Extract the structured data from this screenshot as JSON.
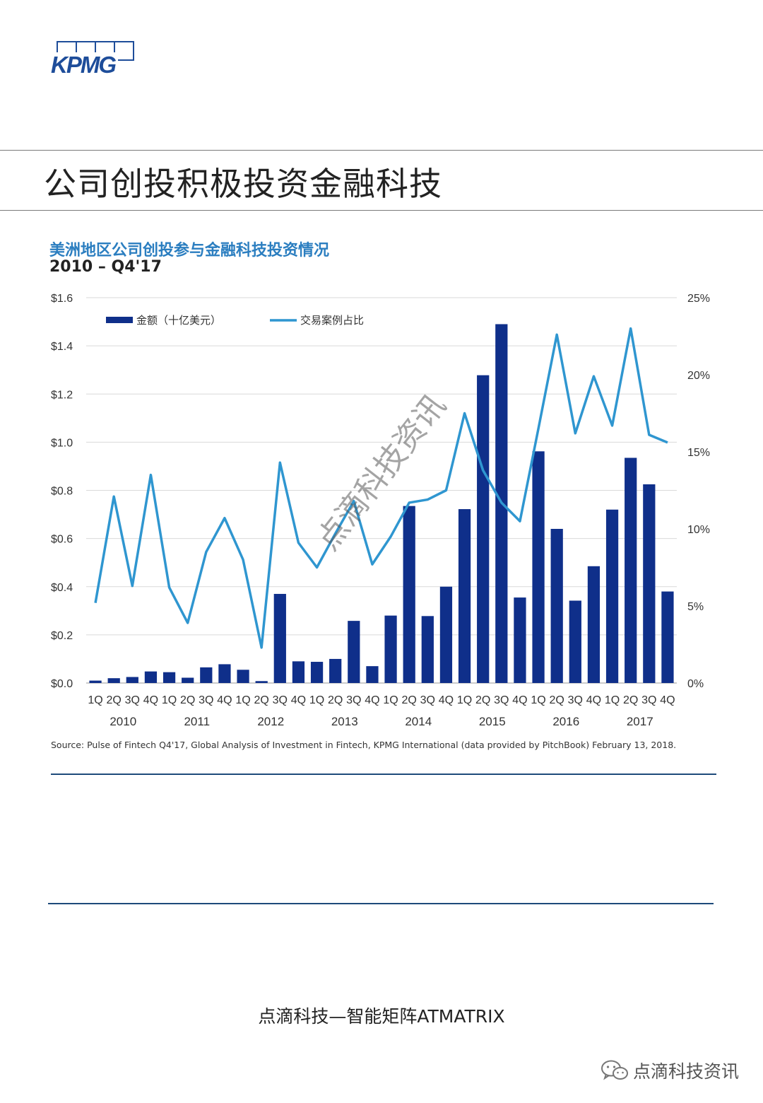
{
  "logo": {
    "text": "KPMG"
  },
  "page_title": "公司创投积极投资金融科技",
  "chart_data": {
    "type": "bar+line",
    "title": "美洲地区公司创投参与金融科技投资情况",
    "subtitle": "2010 – Q4'17",
    "quarters": [
      "1Q",
      "2Q",
      "3Q",
      "4Q",
      "1Q",
      "2Q",
      "3Q",
      "4Q",
      "1Q",
      "2Q",
      "3Q",
      "4Q",
      "1Q",
      "2Q",
      "3Q",
      "4Q",
      "1Q",
      "2Q",
      "3Q",
      "4Q",
      "1Q",
      "2Q",
      "3Q",
      "4Q",
      "1Q",
      "2Q",
      "3Q",
      "4Q",
      "1Q",
      "2Q",
      "3Q",
      "4Q"
    ],
    "years": [
      "2010",
      "2011",
      "2012",
      "2013",
      "2014",
      "2015",
      "2016",
      "2017"
    ],
    "series": [
      {
        "name": "金额（十亿美元）",
        "type": "bar",
        "axis": "left",
        "color": "#0f2f8a",
        "values": [
          0.01,
          0.02,
          0.025,
          0.048,
          0.045,
          0.022,
          0.065,
          0.078,
          0.055,
          0.008,
          0.37,
          0.09,
          0.088,
          0.1,
          0.258,
          0.07,
          0.28,
          0.735,
          0.278,
          0.4,
          0.722,
          1.278,
          1.49,
          0.355,
          0.962,
          0.64,
          0.342,
          0.485,
          0.72,
          0.935,
          0.825,
          0.38
        ]
      },
      {
        "name": "交易案例占比",
        "type": "line",
        "axis": "right",
        "color": "#2f96d0",
        "values": [
          5.2,
          12.1,
          6.3,
          13.5,
          6.2,
          3.9,
          8.5,
          10.7,
          8.0,
          2.3,
          14.3,
          9.1,
          7.5,
          9.7,
          11.8,
          7.7,
          9.5,
          11.7,
          11.9,
          12.5,
          17.5,
          13.8,
          11.7,
          10.5,
          16.5,
          22.6,
          16.2,
          19.9,
          16.7,
          23.0,
          16.1,
          15.6
        ]
      }
    ],
    "left_axis": {
      "range": [
        0,
        1.6
      ],
      "ticks": [
        "$0.0",
        "$0.2",
        "$0.4",
        "$0.6",
        "$0.8",
        "$1.0",
        "$1.2",
        "$1.4",
        "$1.6"
      ]
    },
    "right_axis": {
      "range": [
        0,
        25
      ],
      "ticks": [
        "0%",
        "5%",
        "10%",
        "15%",
        "20%",
        "25%"
      ]
    },
    "grid": true,
    "legend": "top-left"
  },
  "source": "Source: Pulse of Fintech Q4'17, Global Analysis of Investment in Fintech, KPMG International (data provided by PitchBook) February 13, 2018.",
  "watermark": "点滴科技资讯",
  "footer": "点滴科技—智能矩阵ATMATRIX",
  "wechat": {
    "label": "点滴科技资讯",
    "icon": "wechat-icon"
  }
}
